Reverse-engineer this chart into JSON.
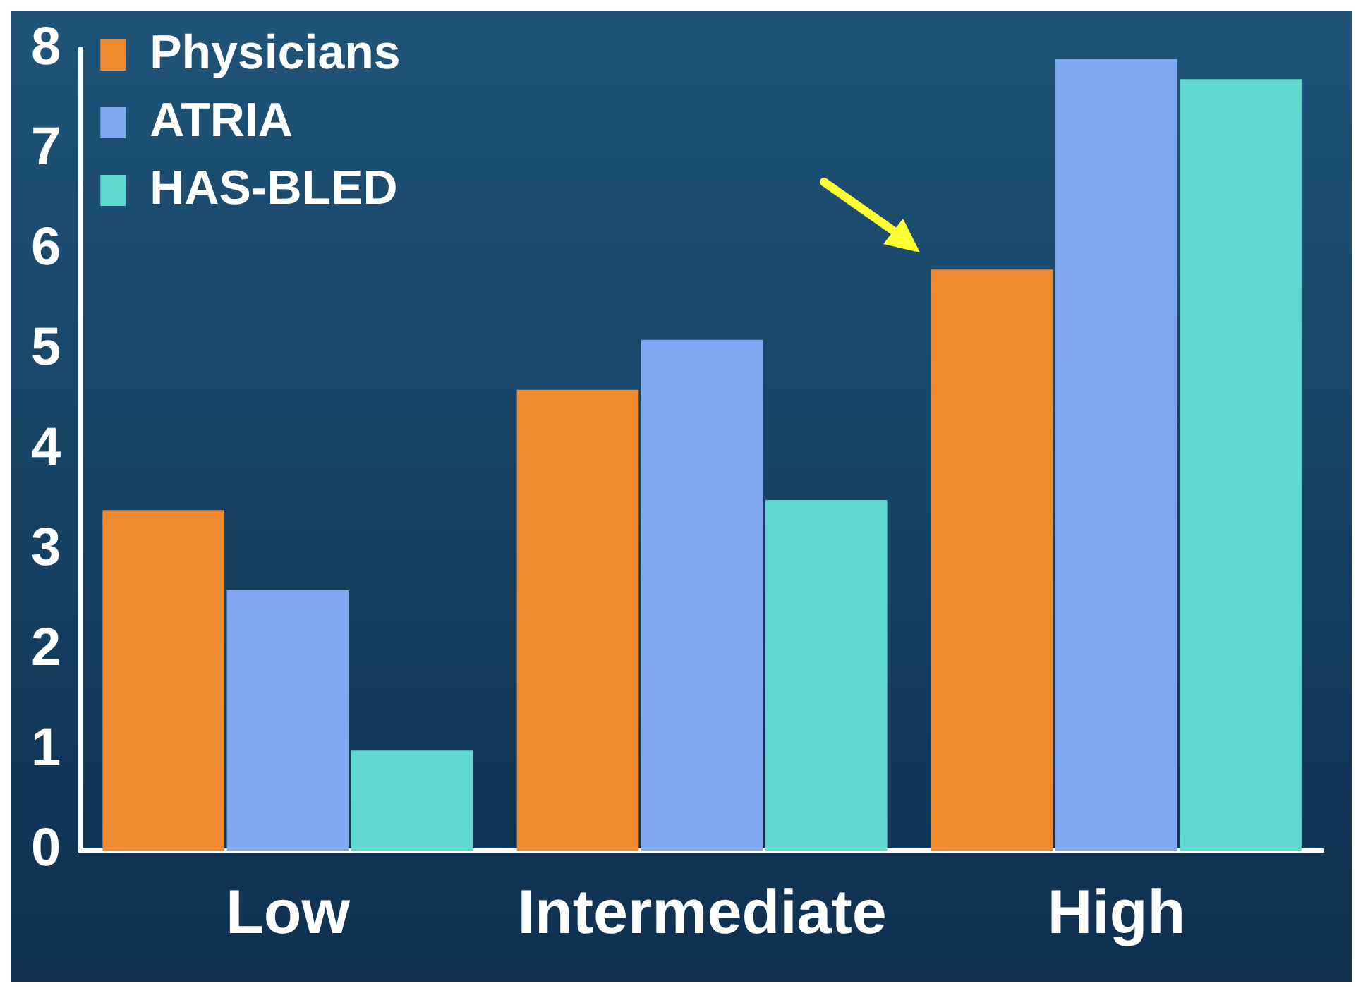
{
  "chart_data": {
    "type": "bar",
    "categories": [
      "Low",
      "Intermediate",
      "High"
    ],
    "series": [
      {
        "name": "Physicians",
        "color": "#f08a30",
        "values": [
          3.4,
          4.6,
          5.8
        ]
      },
      {
        "name": "ATRIA",
        "color": "#7fa8f0",
        "values": [
          2.6,
          5.1,
          7.9
        ]
      },
      {
        "name": "HAS-BLED",
        "color": "#5fd8d0",
        "values": [
          1.0,
          3.5,
          7.7
        ]
      }
    ],
    "ylim": [
      0,
      8
    ],
    "yticks": [
      0,
      1,
      2,
      3,
      4,
      5,
      6,
      7,
      8
    ],
    "grid": false,
    "legend": "top left"
  }
}
